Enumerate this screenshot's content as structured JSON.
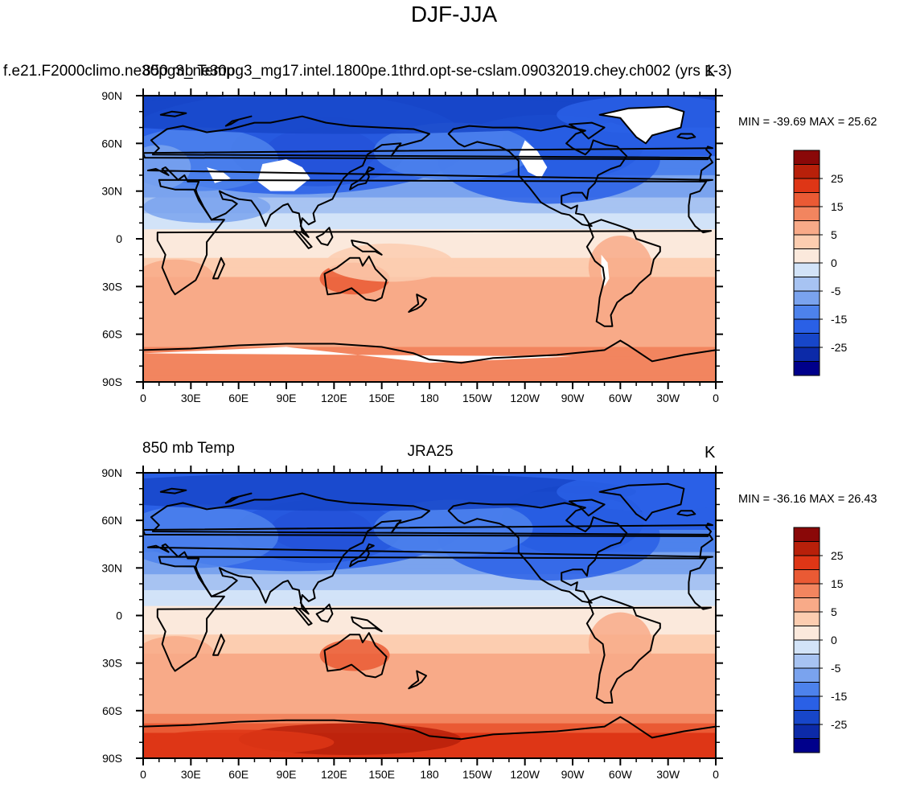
{
  "figure": {
    "title": "DJF-JJA",
    "colors": {
      "levels": [
        "#00008b",
        "#0c2aa8",
        "#1746c9",
        "#2a60e6",
        "#4d82ec",
        "#7aa3ee",
        "#a7c3f2",
        "#d2e3f8",
        "#fbe9dc",
        "#fccdb0",
        "#f8aa88",
        "#f2855f",
        "#ea5a34",
        "#de3616",
        "#b8200a",
        "#8a0808"
      ],
      "land_mask": "#ffffff",
      "coast": "#000000"
    }
  },
  "colorbar": {
    "labels": [
      "25",
      "15",
      "5",
      "0",
      "-5",
      "-15",
      "-25"
    ]
  },
  "panels": [
    {
      "left_title": "f.e21.F2000climo.ne30pg3_ne30pg3_mg17.intel.1800pe.1thrd.opt-se-cslam.09032019.chey.ch002 (yrs 1-3)",
      "left_title_overlay": "850 mb Temp",
      "center_title": "",
      "right_title": "K",
      "min_max": "MIN = -39.69 MAX =  25.62"
    },
    {
      "left_title": "850 mb Temp",
      "center_title": "JRA25",
      "right_title": "K",
      "min_max": "MIN = -36.16 MAX =  26.43"
    }
  ],
  "chart_data": [
    {
      "type": "heatmap",
      "title": "850 mb Temp",
      "field": "DJF minus JJA 850 mb temperature",
      "units": "K",
      "min": -39.69,
      "max": 25.62,
      "xlim": [
        0,
        360
      ],
      "ylim": [
        -90,
        90
      ],
      "x_ticks": [
        "0",
        "30E",
        "60E",
        "90E",
        "120E",
        "150E",
        "180",
        "150W",
        "120W",
        "90W",
        "60W",
        "30W",
        "0"
      ],
      "y_ticks": [
        "90N",
        "60N",
        "30N",
        "0",
        "30S",
        "60S",
        "90S"
      ],
      "contour_levels": [
        -30,
        -25,
        -20,
        -15,
        -10,
        -5,
        -2.5,
        0,
        2.5,
        5,
        10,
        15,
        20,
        25,
        30
      ],
      "colorbar_ticks": [
        25,
        15,
        5,
        0,
        -5,
        -15,
        -25
      ],
      "zonal_profile": [
        {
          "lat": 80,
          "value": -22
        },
        {
          "lat": 60,
          "value": -18
        },
        {
          "lat": 45,
          "value": -12
        },
        {
          "lat": 30,
          "value": -6
        },
        {
          "lat": 15,
          "value": -2
        },
        {
          "lat": 0,
          "value": 1
        },
        {
          "lat": -15,
          "value": 3
        },
        {
          "lat": -30,
          "value": 6
        },
        {
          "lat": -45,
          "value": 7
        },
        {
          "lat": -60,
          "value": 8
        },
        {
          "lat": -75,
          "value": 12
        }
      ]
    },
    {
      "type": "heatmap",
      "title": "JRA25",
      "field": "DJF minus JJA 850 mb temperature",
      "units": "K",
      "min": -36.16,
      "max": 26.43,
      "xlim": [
        0,
        360
      ],
      "ylim": [
        -90,
        90
      ],
      "x_ticks": [
        "0",
        "30E",
        "60E",
        "90E",
        "120E",
        "150E",
        "180",
        "150W",
        "120W",
        "90W",
        "60W",
        "30W",
        "0"
      ],
      "y_ticks": [
        "90N",
        "60N",
        "30N",
        "0",
        "30S",
        "60S",
        "90S"
      ],
      "contour_levels": [
        -30,
        -25,
        -20,
        -15,
        -10,
        -5,
        -2.5,
        0,
        2.5,
        5,
        10,
        15,
        20,
        25,
        30
      ],
      "colorbar_ticks": [
        25,
        15,
        5,
        0,
        -5,
        -15,
        -25
      ],
      "zonal_profile": [
        {
          "lat": 80,
          "value": -20
        },
        {
          "lat": 60,
          "value": -17
        },
        {
          "lat": 45,
          "value": -12
        },
        {
          "lat": 30,
          "value": -6
        },
        {
          "lat": 15,
          "value": -2
        },
        {
          "lat": 0,
          "value": 1
        },
        {
          "lat": -15,
          "value": 3
        },
        {
          "lat": -30,
          "value": 6
        },
        {
          "lat": -45,
          "value": 7
        },
        {
          "lat": -60,
          "value": 9
        },
        {
          "lat": -75,
          "value": 20
        }
      ]
    }
  ]
}
